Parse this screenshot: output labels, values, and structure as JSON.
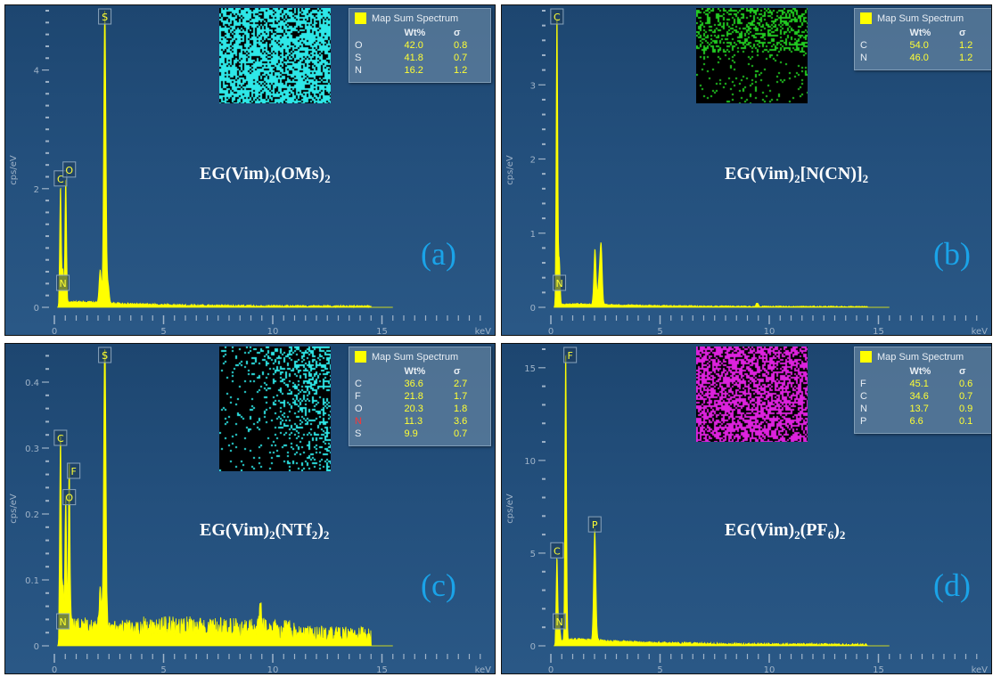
{
  "chart_data": [
    {
      "type": "line",
      "panel_label": "(a)",
      "title_parts": [
        {
          "t": "EG(Vim)"
        },
        {
          "t": "2",
          "sub": true
        },
        {
          "t": "(OMs)"
        },
        {
          "t": "2",
          "sub": true
        }
      ],
      "xlabel": "keV",
      "ylabel": "cps/eV",
      "xlim": [
        0,
        20
      ],
      "ylim": [
        0,
        5
      ],
      "xticks": [
        0,
        5,
        10,
        15
      ],
      "yticks": [
        0,
        2,
        4
      ],
      "yminor": 0.2,
      "background_level": 0.08,
      "peaks": [
        {
          "label": "C",
          "keV": 0.28,
          "height": 2.0,
          "tag": true
        },
        {
          "label": "N",
          "keV": 0.39,
          "height": 0.55,
          "tag": true
        },
        {
          "label": "O",
          "keV": 0.52,
          "height": 2.15,
          "tag": true
        },
        {
          "label": "",
          "keV": 2.1,
          "height": 0.55,
          "tag": false
        },
        {
          "label": "S",
          "keV": 2.31,
          "height": 5.0,
          "tag": true
        },
        {
          "label": "",
          "keV": 2.46,
          "height": 0.3,
          "tag": false
        }
      ],
      "map_color": "#2ee8e8",
      "map_density": 0.7,
      "legend": {
        "title": "Map Sum Spectrum",
        "col_wt": "Wt%",
        "col_sigma": "σ",
        "rows": [
          {
            "el": "O",
            "wt": "42.0",
            "sigma": "0.8"
          },
          {
            "el": "S",
            "wt": "41.8",
            "sigma": "0.7"
          },
          {
            "el": "N",
            "wt": "16.2",
            "sigma": "1.2"
          }
        ]
      }
    },
    {
      "type": "line",
      "panel_label": "(b)",
      "title_parts": [
        {
          "t": "EG(Vim)"
        },
        {
          "t": "2",
          "sub": true
        },
        {
          "t": "[N(CN)]"
        },
        {
          "t": "2",
          "sub": true
        }
      ],
      "xlabel": "keV",
      "ylabel": "cps/eV",
      "xlim": [
        0,
        20
      ],
      "ylim": [
        0,
        4
      ],
      "xticks": [
        0,
        5,
        10,
        15
      ],
      "yticks": [
        0,
        1,
        2,
        3
      ],
      "yminor": 0.2,
      "background_level": 0.04,
      "peaks": [
        {
          "label": "C",
          "keV": 0.28,
          "height": 4.0,
          "tag": true
        },
        {
          "label": "N",
          "keV": 0.39,
          "height": 0.6,
          "tag": true
        },
        {
          "label": "",
          "keV": 2.02,
          "height": 0.75,
          "tag": false
        },
        {
          "label": "",
          "keV": 2.2,
          "height": 0.3,
          "tag": false
        },
        {
          "label": "",
          "keV": 2.3,
          "height": 0.8,
          "tag": false
        },
        {
          "label": "",
          "keV": 9.45,
          "height": 0.05,
          "tag": false
        }
      ],
      "map_color": "#22cc22",
      "map_density": 0.25,
      "legend": {
        "title": "Map Sum Spectrum",
        "col_wt": "Wt%",
        "col_sigma": "σ",
        "rows": [
          {
            "el": "C",
            "wt": "54.0",
            "sigma": "1.2"
          },
          {
            "el": "N",
            "wt": "46.0",
            "sigma": "1.2"
          }
        ]
      }
    },
    {
      "type": "line",
      "panel_label": "(c)",
      "title_parts": [
        {
          "t": "EG(Vim)"
        },
        {
          "t": "2",
          "sub": true
        },
        {
          "t": "(NTf"
        },
        {
          "t": "2",
          "sub": true
        },
        {
          "t": ")"
        },
        {
          "t": "2",
          "sub": true
        }
      ],
      "xlabel": "keV",
      "ylabel": "cps/eV",
      "xlim": [
        0,
        20
      ],
      "ylim": [
        0,
        0.45
      ],
      "xticks": [
        0,
        5,
        10,
        15
      ],
      "yticks": [
        0,
        0.1,
        0.2,
        0.3,
        0.4
      ],
      "yminor": 0.02,
      "background_level": 0.02,
      "peaks": [
        {
          "label": "C",
          "keV": 0.28,
          "height": 0.3,
          "tag": true
        },
        {
          "label": "N",
          "keV": 0.39,
          "height": 0.07,
          "tag": true
        },
        {
          "label": "O",
          "keV": 0.52,
          "height": 0.21,
          "tag": true
        },
        {
          "label": "F",
          "keV": 0.68,
          "height": 0.25,
          "tag": true
        },
        {
          "label": "",
          "keV": 2.1,
          "height": 0.05,
          "tag": false
        },
        {
          "label": "S",
          "keV": 2.31,
          "height": 0.45,
          "tag": true
        },
        {
          "label": "",
          "keV": 9.45,
          "height": 0.04,
          "tag": false
        }
      ],
      "map_color": "#2ee8e8",
      "map_density": 0.3,
      "legend": {
        "title": "Map Sum Spectrum",
        "col_wt": "Wt%",
        "col_sigma": "σ",
        "rows": [
          {
            "el": "C",
            "wt": "36.6",
            "sigma": "2.7"
          },
          {
            "el": "F",
            "wt": "21.8",
            "sigma": "1.7"
          },
          {
            "el": "O",
            "wt": "20.3",
            "sigma": "1.8"
          },
          {
            "el": "N",
            "wt": "11.3",
            "sigma": "3.6",
            "el_color": "#ff3333"
          },
          {
            "el": "S",
            "wt": "9.9",
            "sigma": "0.7"
          }
        ]
      }
    },
    {
      "type": "line",
      "panel_label": "(d)",
      "title_parts": [
        {
          "t": "EG(Vim)"
        },
        {
          "t": "2",
          "sub": true
        },
        {
          "t": "(PF"
        },
        {
          "t": "6",
          "sub": true
        },
        {
          "t": ")"
        },
        {
          "t": "2",
          "sub": true
        }
      ],
      "xlabel": "keV",
      "ylabel": "cps/eV",
      "xlim": [
        0,
        20
      ],
      "ylim": [
        0,
        16
      ],
      "xticks": [
        0,
        5,
        10,
        15
      ],
      "yticks": [
        0,
        5,
        10,
        15
      ],
      "yminor": 1,
      "background_level": 0.3,
      "peaks": [
        {
          "label": "C",
          "keV": 0.28,
          "height": 4.6,
          "tag": true
        },
        {
          "label": "N",
          "keV": 0.39,
          "height": 1.0,
          "tag": true
        },
        {
          "label": "F",
          "keV": 0.68,
          "height": 16.0,
          "tag": true
        },
        {
          "label": "P",
          "keV": 2.01,
          "height": 6.0,
          "tag": true
        }
      ],
      "map_color": "#dd22dd",
      "map_density": 0.6,
      "legend": {
        "title": "Map Sum Spectrum",
        "col_wt": "Wt%",
        "col_sigma": "σ",
        "rows": [
          {
            "el": "F",
            "wt": "45.1",
            "sigma": "0.6"
          },
          {
            "el": "C",
            "wt": "34.6",
            "sigma": "0.7"
          },
          {
            "el": "N",
            "wt": "13.7",
            "sigma": "0.9"
          },
          {
            "el": "P",
            "wt": "6.6",
            "sigma": "0.1"
          }
        ]
      }
    }
  ],
  "colors": {
    "spectrum": "#ffff00",
    "axis": "#9fb3c8",
    "panel_label": "#1aa3e8"
  }
}
